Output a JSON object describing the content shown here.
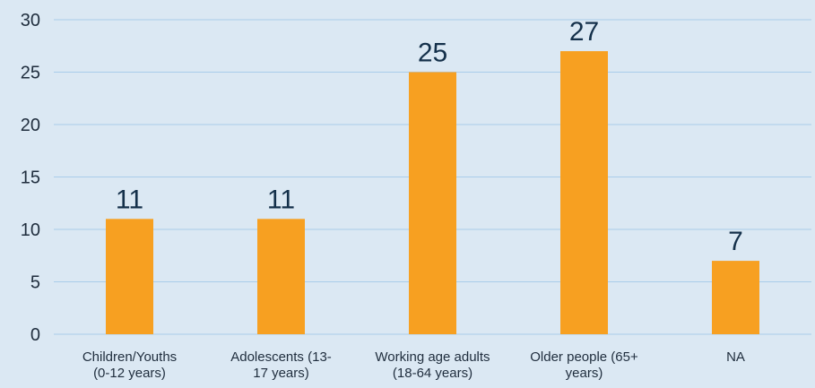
{
  "colors": {
    "background": "#dbe8f3",
    "bar": "#f7a021",
    "grid": "#a9cdea",
    "text": "#1f2d3d"
  },
  "chart_data": {
    "type": "bar",
    "title": "",
    "xlabel": "",
    "ylabel": "",
    "ylim": [
      0,
      30
    ],
    "yticks": [
      0,
      5,
      10,
      15,
      20,
      25,
      30
    ],
    "grid": true,
    "legend": "none",
    "categories": [
      [
        "Children/Youths",
        "(0-12 years)"
      ],
      [
        "Adolescents (13-",
        "17 years)"
      ],
      [
        "Working age adults",
        "(18-64 years)"
      ],
      [
        "Older people (65+",
        "years)"
      ],
      [
        "NA"
      ]
    ],
    "values": [
      11,
      11,
      25,
      27,
      7
    ],
    "data_labels": [
      "11",
      "11",
      "25",
      "27",
      "7"
    ]
  }
}
